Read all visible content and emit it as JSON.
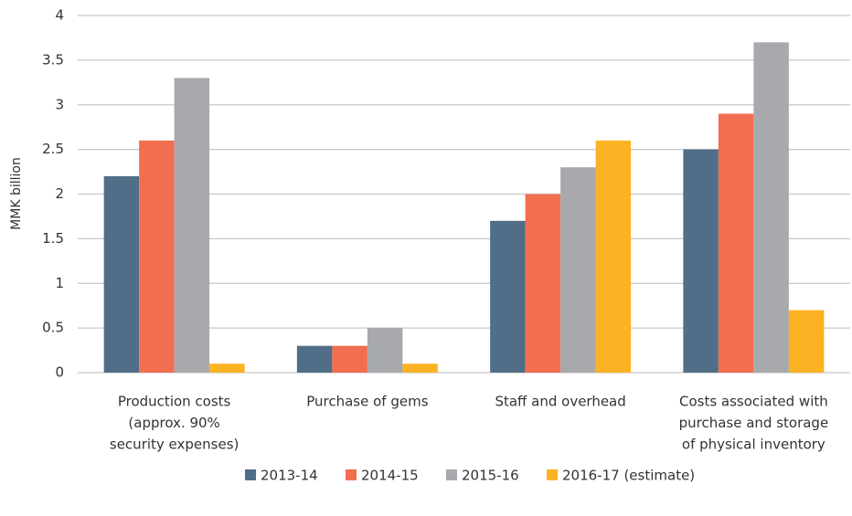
{
  "chart_data": {
    "type": "bar",
    "y_label": "MMK billion",
    "categories": [
      [
        "Production costs",
        "(approx. 90%",
        "security expenses)"
      ],
      [
        "Purchase of gems"
      ],
      [
        "Staff and overhead"
      ],
      [
        "Costs associated with",
        "purchase and storage",
        "of physical inventory"
      ]
    ],
    "series": [
      {
        "name": "2013-14",
        "color": "#506e87",
        "values": [
          2.2,
          0.3,
          1.7,
          2.5
        ]
      },
      {
        "name": "2014-15",
        "color": "#f26e50",
        "values": [
          2.6,
          0.3,
          2.0,
          2.9
        ]
      },
      {
        "name": "2015-16",
        "color": "#a7a9ac",
        "values": [
          3.3,
          0.5,
          2.3,
          3.7
        ]
      },
      {
        "name": "2016-17 (estimate)",
        "color": "#fbb324",
        "values": [
          0.1,
          0.1,
          2.6,
          0.7
        ]
      }
    ],
    "ylim": [
      0,
      4
    ],
    "yticks": [
      0,
      0.5,
      1,
      1.5,
      2,
      2.5,
      3,
      3.5,
      4
    ],
    "grid": true,
    "legend": "bottom"
  }
}
